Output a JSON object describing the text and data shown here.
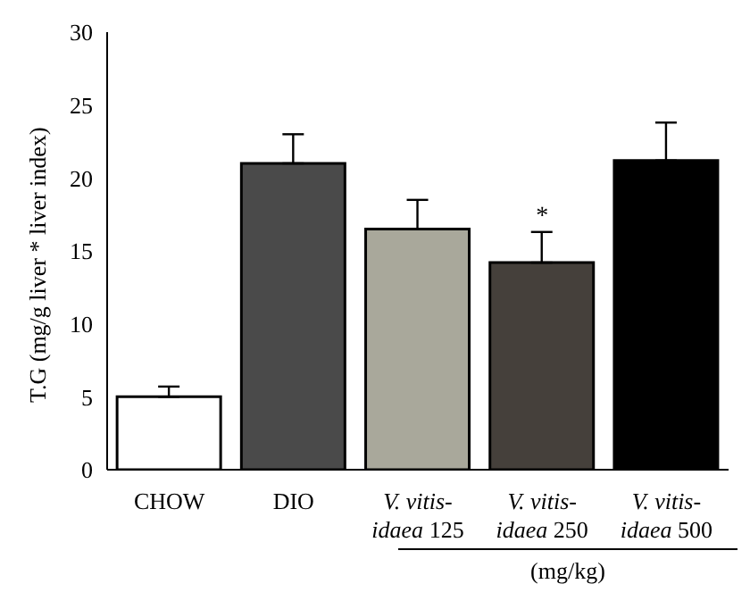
{
  "chart_data": {
    "type": "bar",
    "ylabel": "T.G (mg/g liver * liver index)",
    "xlabel": "(mg/kg)",
    "categories": [
      "CHOW",
      "DIO",
      "V. vitis-idaea 125",
      "V. vitis-idaea 250",
      "V. vitis-idaea 500"
    ],
    "values": [
      5.0,
      21.0,
      16.5,
      14.2,
      21.2
    ],
    "errors": [
      [
        5.0,
        5.7
      ],
      [
        21.0,
        23.0
      ],
      [
        16.5,
        18.5
      ],
      [
        14.2,
        16.3
      ],
      [
        21.2,
        23.8
      ]
    ],
    "colors": [
      "#ffffff",
      "#4a4a4a",
      "#a9a89b",
      "#45403b",
      "#000000"
    ],
    "ylim": [
      0,
      30
    ],
    "yticks": [
      0,
      5,
      10,
      15,
      20,
      25,
      30
    ],
    "grid": false,
    "legend": false,
    "annotations": [
      {
        "text": "*",
        "x": "V. vitis-idaea 250",
        "y": 16.3
      }
    ]
  }
}
